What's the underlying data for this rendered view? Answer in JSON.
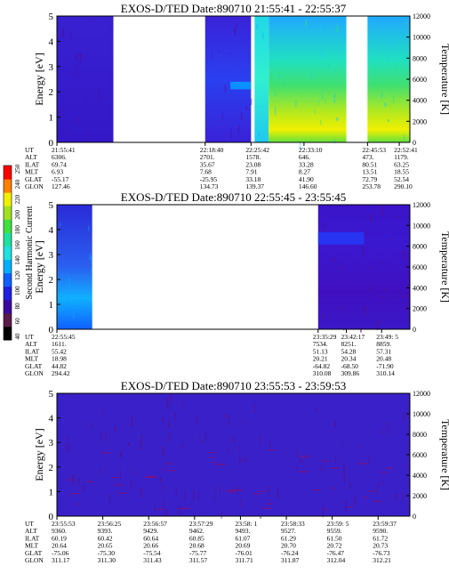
{
  "colorbar": {
    "label": "Second Harmonic Current",
    "ticks": [
      "40",
      "60",
      "80",
      "100",
      "120",
      "140",
      "160",
      "180",
      "200",
      "220",
      "240",
      "250"
    ],
    "colors": [
      "#000000",
      "#5a1a4a",
      "#3a0aa0",
      "#2020e0",
      "#1060ff",
      "#00b0ff",
      "#20e0e0",
      "#20e0a0",
      "#40e040",
      "#a0e020",
      "#f0f000",
      "#ff8000",
      "#ff0000"
    ]
  },
  "row_labels": [
    "UT",
    "ALT",
    "ILAT",
    "MLT",
    "GLAT",
    "GLON"
  ],
  "chart_data": [
    {
      "type": "heatmap",
      "title": "EXOS-D/TED   Date:890710   21:55:41 - 22:55:37",
      "ylabel": "Energy [eV]",
      "y2label": "Temperature [K]",
      "ylim": [
        0,
        5
      ],
      "y2lim": [
        0,
        12000
      ],
      "yticks": [
        "0",
        "1",
        "2",
        "3",
        "4",
        "5"
      ],
      "y2ticks": [
        "0",
        "2000",
        "4000",
        "6000",
        "8000",
        "10000",
        "12000"
      ],
      "segments": [
        {
          "t0": 0.0,
          "t1": 0.16,
          "style": "low"
        },
        {
          "t0": 0.16,
          "t1": 0.42,
          "style": "gap"
        },
        {
          "t0": 0.42,
          "t1": 0.55,
          "style": "blue"
        },
        {
          "t0": 0.56,
          "t1": 0.6,
          "style": "cyan"
        },
        {
          "t0": 0.6,
          "t1": 0.82,
          "style": "warm"
        },
        {
          "t0": 0.82,
          "t1": 0.88,
          "style": "gap"
        },
        {
          "t0": 0.88,
          "t1": 1.0,
          "style": "warm"
        }
      ],
      "ephemeris": [
        {
          "at": 0.0,
          "values": [
            "21:55:41",
            "6306.",
            "69.74",
            "6.93",
            "-55.17",
            "127.46"
          ]
        },
        {
          "at": 0.42,
          "values": [
            "22:18:40",
            "2701.",
            "35.67",
            "7.68",
            "-25.95",
            "134.73"
          ]
        },
        {
          "at": 0.55,
          "values": [
            "22:25:42",
            "1578.",
            "23.08",
            "7.91",
            "33.18",
            "139.37"
          ]
        },
        {
          "at": 0.7,
          "values": [
            "22:33:10",
            "646.",
            "33.28",
            "8.27",
            "41.90",
            "146.60"
          ]
        },
        {
          "at": 0.88,
          "values": [
            "22:45:53",
            "473.",
            "80.51",
            "13.51",
            "72.79",
            "253.78"
          ]
        },
        {
          "at": 0.97,
          "values": [
            "22:52:41",
            "1179.",
            "63.25",
            "18.55",
            "52.54",
            "290.10"
          ]
        }
      ]
    },
    {
      "type": "heatmap",
      "title": "EXOS-D/TED   Date:890710   22:55:45 - 23:55:45",
      "ylabel": "Energy [eV]",
      "y2label": "Temperature [K]",
      "ylim": [
        0,
        5
      ],
      "y2lim": [
        0,
        12000
      ],
      "yticks": [
        "0",
        "1",
        "2",
        "3",
        "4",
        "5"
      ],
      "y2ticks": [
        "0",
        "2000",
        "4000",
        "6000",
        "8000",
        "10000",
        "12000"
      ],
      "segments": [
        {
          "t0": 0.0,
          "t1": 0.1,
          "style": "cyanlow"
        },
        {
          "t0": 0.1,
          "t1": 0.74,
          "style": "gap"
        },
        {
          "t0": 0.74,
          "t1": 1.0,
          "style": "bluehigh"
        }
      ],
      "ephemeris": [
        {
          "at": 0.0,
          "values": [
            "22:55:45",
            "1611.",
            "55.42",
            "18.98",
            "44.82",
            "294.42"
          ]
        },
        {
          "at": 0.74,
          "values": [
            "23:35:29",
            "7534.",
            "51.13",
            "20.21",
            "-64.82",
            "310.08"
          ]
        },
        {
          "at": 0.82,
          "values": [
            "23:42:17",
            "8251.",
            "54.28",
            "20.34",
            "-68.50",
            "309.86"
          ]
        },
        {
          "at": 0.92,
          "values": [
            "23:49: 5",
            "8859.",
            "57.31",
            "20.48",
            "-71.90",
            "310.14"
          ]
        }
      ]
    },
    {
      "type": "heatmap",
      "title": "EXOS-D/TED   Date:890710   23:55:53 - 23:59:53",
      "ylabel": "Energy [eV]",
      "y2label": "Temperature [K]",
      "ylim": [
        0,
        5
      ],
      "y2lim": [
        0,
        12000
      ],
      "yticks": [
        "0",
        "1",
        "2",
        "3",
        "4",
        "5"
      ],
      "y2ticks": [
        "0",
        "2000",
        "4000",
        "6000",
        "8000",
        "10000",
        "12000"
      ],
      "segments": [
        {
          "t0": 0.0,
          "t1": 1.0,
          "style": "uniform"
        }
      ],
      "ephemeris": [
        {
          "at": 0.0,
          "values": [
            "23:55:53",
            "9360.",
            "60.19",
            "20.64",
            "-75.06",
            "311.17"
          ]
        },
        {
          "at": 0.13,
          "values": [
            "23:56:25",
            "9393.",
            "60.42",
            "20.65",
            "-75.30",
            "311.30"
          ]
        },
        {
          "at": 0.26,
          "values": [
            "23:56:57",
            "9429.",
            "60.64",
            "20.66",
            "-75.54",
            "311.43"
          ]
        },
        {
          "at": 0.39,
          "values": [
            "23:57:29",
            "9462.",
            "60.85",
            "20.68",
            "-75.77",
            "311.57"
          ]
        },
        {
          "at": 0.52,
          "values": [
            "23:58: 1",
            "9493.",
            "61.07",
            "20.69",
            "-76.01",
            "311.71"
          ]
        },
        {
          "at": 0.65,
          "values": [
            "23:58:33",
            "9527.",
            "61.29",
            "20.70",
            "-76.24",
            "311.87"
          ]
        },
        {
          "at": 0.78,
          "values": [
            "23:59: 5",
            "9559.",
            "61.50",
            "20.72",
            "-76.47",
            "312.04"
          ]
        },
        {
          "at": 0.91,
          "values": [
            "23:59:37",
            "9590.",
            "61.72",
            "20.73",
            "-76.73",
            "312.21"
          ]
        }
      ]
    }
  ]
}
